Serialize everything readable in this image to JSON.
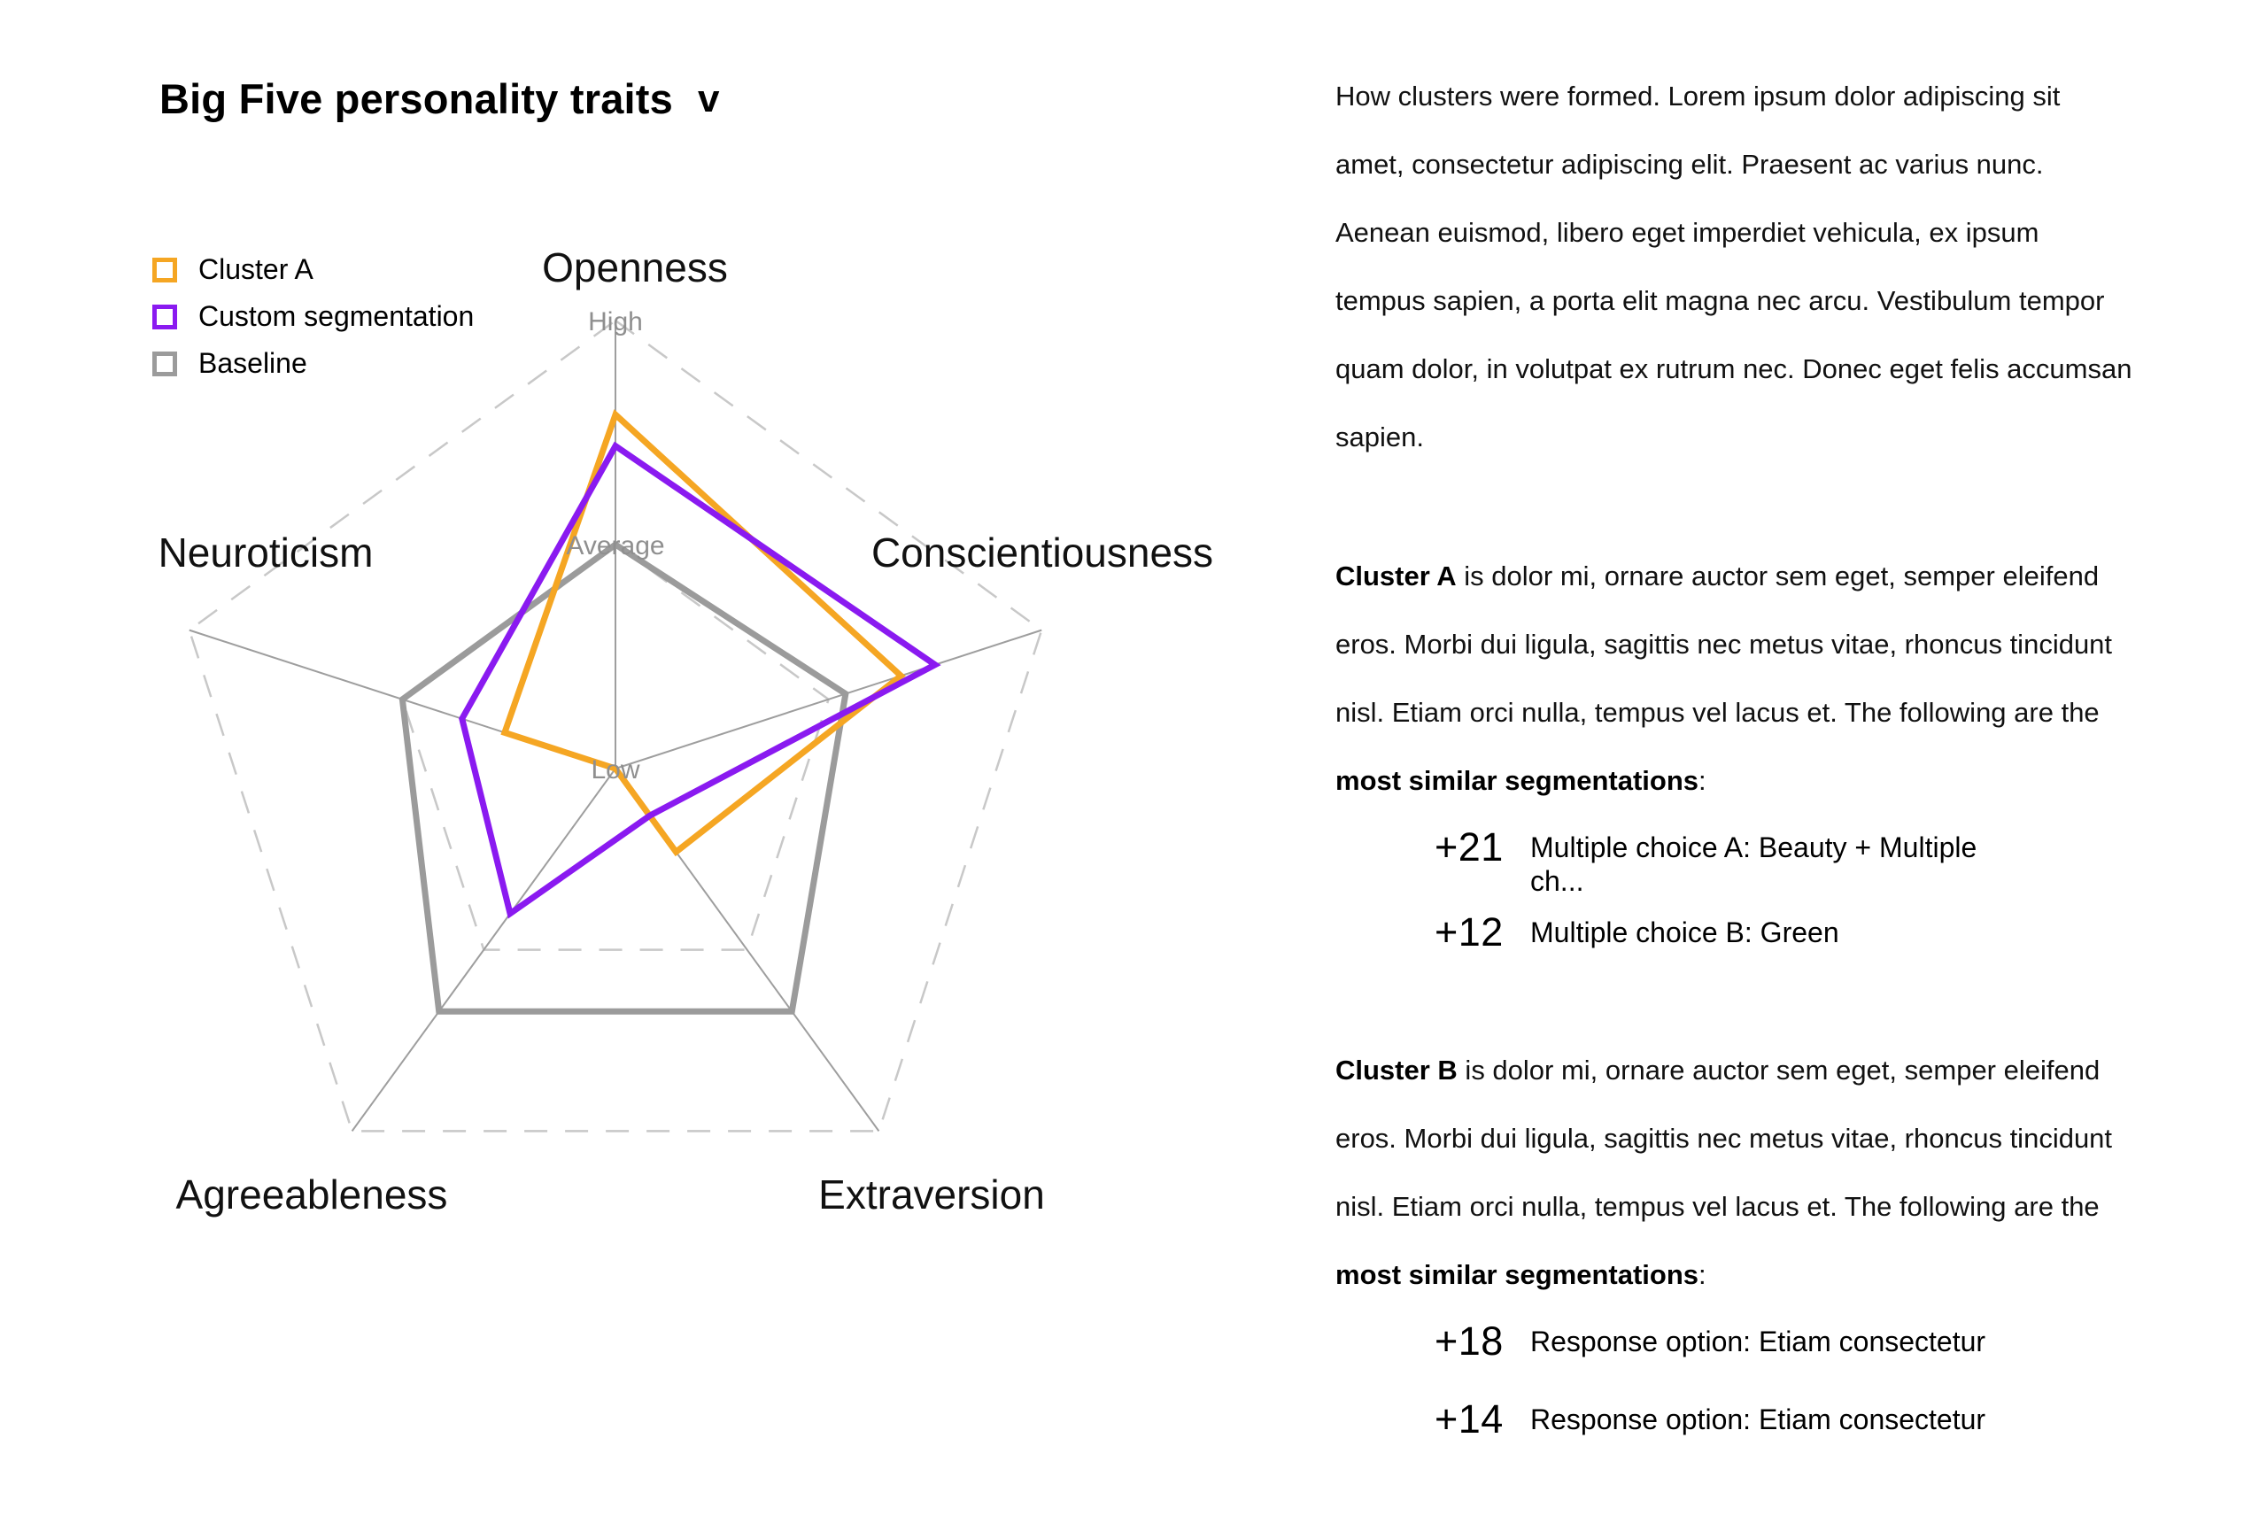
{
  "header": {
    "title": "Big Five personality traits",
    "dropdown_glyph": "v"
  },
  "legend": {
    "items": [
      {
        "label": "Cluster A",
        "color": "#F5A623"
      },
      {
        "label": "Custom segmentation",
        "color": "#8A1AF0"
      },
      {
        "label": "Baseline",
        "color": "#9B9B9B"
      }
    ]
  },
  "chart_data": {
    "type": "radar",
    "axes": [
      "Openness",
      "Conscientiousness",
      "Extraversion",
      "Agreeableness",
      "Neuroticism"
    ],
    "levels": [
      "Low",
      "Average",
      "High"
    ],
    "scale": [
      0,
      1
    ],
    "grid": true,
    "legend_position": "top-left",
    "series": [
      {
        "name": "Baseline",
        "color": "#9B9B9B",
        "values": [
          0.5,
          0.54,
          0.67,
          0.67,
          0.5
        ]
      },
      {
        "name": "Cluster A",
        "color": "#F5A623",
        "values": [
          0.79,
          0.67,
          0.23,
          0.0,
          0.26
        ]
      },
      {
        "name": "Custom segmentation",
        "color": "#8A1AF0",
        "values": [
          0.72,
          0.75,
          0.13,
          0.4,
          0.36
        ]
      }
    ]
  },
  "panel": {
    "intro": "How clusters were formed. Lorem ipsum dolor adipiscing sit amet, consectetur adipiscing elit. Praesent ac varius nunc. Aenean euismod, libero eget imperdiet vehicula, ex ipsum tempus sapien, a porta elit magna nec arcu. Vestibulum tempor quam dolor, in volutpat ex rutrum nec. Donec eget felis accumsan sapien.",
    "clusters": [
      {
        "name": "Cluster A",
        "description": " is dolor mi, ornare auctor sem eget, semper eleifend eros. Morbi dui ligula, sagittis nec metus vitae, rhoncus tincidunt nisl. Etiam orci nulla, tempus vel lacus et. The following are the ",
        "emphasis": "most similar segmentations",
        "suffix": ":",
        "segmentations": [
          {
            "score": "+21",
            "label": "Multiple choice A: Beauty + Multiple ch..."
          },
          {
            "score": "+12",
            "label": "Multiple choice B: Green"
          }
        ]
      },
      {
        "name": "Cluster B",
        "description": " is dolor mi, ornare auctor sem eget, semper eleifend eros. Morbi dui ligula, sagittis nec metus vitae, rhoncus tincidunt nisl. Etiam orci nulla, tempus vel lacus et. The following are the ",
        "emphasis": "most similar segmentations",
        "suffix": ":",
        "segmentations": [
          {
            "score": "+18",
            "label": "Response option: Etiam consectetur"
          },
          {
            "score": "+14",
            "label": "Response option: Etiam consectetur"
          }
        ]
      }
    ]
  }
}
